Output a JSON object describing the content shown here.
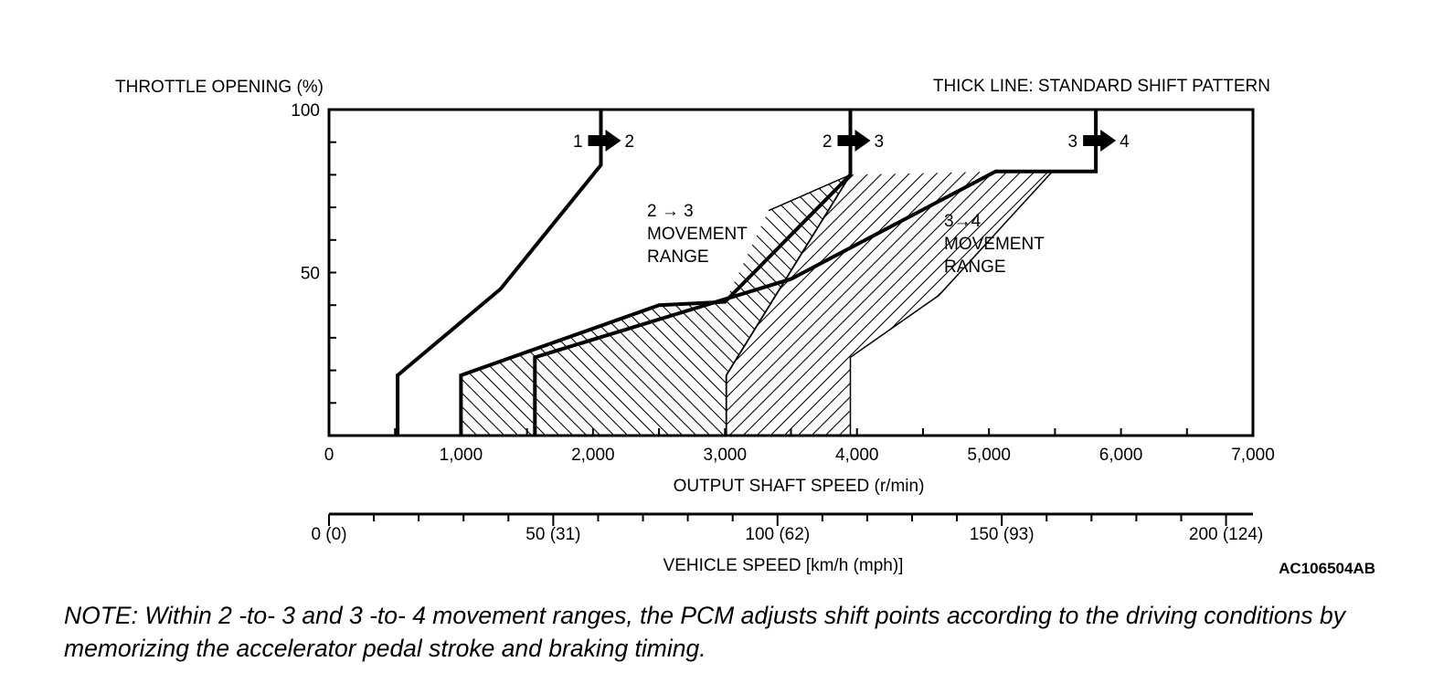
{
  "chart_data": {
    "type": "line",
    "ylabel": "THROTTLE OPENING (%)",
    "legend_note": "THICK LINE: STANDARD SHIFT PATTERN",
    "xlabel": "OUTPUT SHAFT SPEED (r/min)",
    "xlabel2": "VEHICLE SPEED [km/h (mph)]",
    "xlim": [
      0,
      7000
    ],
    "ylim": [
      0,
      100
    ],
    "y_ticks": [
      "100",
      "50"
    ],
    "x_ticks": [
      {
        "value": 0,
        "label": "0"
      },
      {
        "value": 1000,
        "label": "1,000"
      },
      {
        "value": 2000,
        "label": "2,000"
      },
      {
        "value": 3000,
        "label": "3,000"
      },
      {
        "value": 4000,
        "label": "4,000"
      },
      {
        "value": 5000,
        "label": "5,000"
      },
      {
        "value": 6000,
        "label": "6,000"
      },
      {
        "value": 7000,
        "label": "7,000"
      }
    ],
    "x2_ticks": [
      {
        "value": 0,
        "label": "0 (0)"
      },
      {
        "value": 50,
        "label": "50 (31)"
      },
      {
        "value": 100,
        "label": "100 (62)"
      },
      {
        "value": 150,
        "label": "150 (93)"
      },
      {
        "value": 200,
        "label": "200 (124)"
      }
    ],
    "x2lim": [
      0,
      206
    ],
    "series": [
      {
        "name": "1 → 2",
        "from": "1",
        "to": "2",
        "points": [
          [
            520,
            0
          ],
          [
            520,
            18.5
          ],
          [
            1300,
            45
          ],
          [
            2060,
            83
          ],
          [
            2060,
            100
          ]
        ]
      },
      {
        "name": "2 → 3",
        "from": "2",
        "to": "3",
        "points": [
          [
            1000,
            0
          ],
          [
            1000,
            18.5
          ],
          [
            2500,
            40
          ],
          [
            3000,
            41
          ],
          [
            3950,
            80
          ],
          [
            3950,
            100
          ]
        ]
      },
      {
        "name": "3 → 4",
        "from": "3",
        "to": "4",
        "points": [
          [
            1560,
            0
          ],
          [
            1560,
            24
          ],
          [
            3500,
            48
          ],
          [
            5050,
            81
          ],
          [
            5810,
            81
          ],
          [
            5810,
            100
          ]
        ]
      }
    ],
    "ranges": [
      {
        "name": "2 → 3 MOVEMENT RANGE",
        "label_lines": [
          "2 → 3",
          "MOVEMENT",
          "RANGE"
        ],
        "lower": [
          [
            1560,
            0
          ],
          [
            1560,
            24
          ],
          [
            3010,
            18.5
          ],
          [
            3010,
            0
          ]
        ],
        "upper": [
          [
            3330,
            69
          ],
          [
            3950,
            80
          ]
        ]
      },
      {
        "name": "3→4 MOVEMENT RANGE",
        "label_lines": [
          "3→4",
          "MOVEMENT",
          "RANGE"
        ],
        "lower": [
          [
            3010,
            0
          ],
          [
            3010,
            18.5
          ],
          [
            3950,
            80
          ],
          [
            3950,
            24
          ],
          [
            3950,
            0
          ]
        ],
        "upper": [
          [
            5480,
            81
          ],
          [
            4620,
            43
          ],
          [
            3950,
            24
          ]
        ]
      }
    ],
    "grid": false
  },
  "figure_code": "AC106504AB",
  "note": "NOTE: Within 2 -to- 3 and 3 -to- 4 movement ranges, the PCM adjusts shift points according to the driving conditions by memorizing the accelerator pedal stroke and braking timing."
}
